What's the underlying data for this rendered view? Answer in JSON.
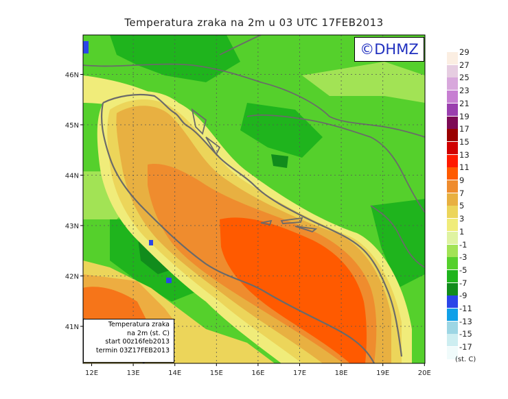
{
  "title": "Temperatura zraka na 2m u 03 UTC 17FEB2013",
  "logo": "©DHMZ",
  "info": {
    "line1": "Temperatura zraka",
    "line2": "na 2m (st. C)",
    "line3": "start 00z16feb2013",
    "line4": "termin 03Z17FEB2013"
  },
  "legend": {
    "unit": "(st. C)",
    "entries": [
      {
        "label": "29",
        "color": "#fbeee2"
      },
      {
        "label": "27",
        "color": "#e6cde1"
      },
      {
        "label": "25",
        "color": "#d8a8dc"
      },
      {
        "label": "23",
        "color": "#c77fd2"
      },
      {
        "label": "21",
        "color": "#9a3fae"
      },
      {
        "label": "19",
        "color": "#7d0a55"
      },
      {
        "label": "17",
        "color": "#9a0000"
      },
      {
        "label": "15",
        "color": "#d00000"
      },
      {
        "label": "13",
        "color": "#ff1a00"
      },
      {
        "label": "11",
        "color": "#ff5a00"
      },
      {
        "label": "9",
        "color": "#ef8c2e"
      },
      {
        "label": "7",
        "color": "#e8b041"
      },
      {
        "label": "5",
        "color": "#ecd55a"
      },
      {
        "label": "3",
        "color": "#f0ec7a"
      },
      {
        "label": "1",
        "color": "#dff3a1"
      },
      {
        "label": "-1",
        "color": "#a2e355"
      },
      {
        "label": "-3",
        "color": "#55d02c"
      },
      {
        "label": "-5",
        "color": "#1fb41d"
      },
      {
        "label": "-7",
        "color": "#118c1c"
      },
      {
        "label": "-9",
        "color": "#2a45e8"
      },
      {
        "label": "-11",
        "color": "#10a0e8"
      },
      {
        "label": "-13",
        "color": "#9dd6e4"
      },
      {
        "label": "-15",
        "color": "#cdeef1"
      },
      {
        "label": "-17",
        "color": "#f0fbfb"
      }
    ]
  },
  "axes": {
    "lon_labels": [
      "12E",
      "13E",
      "14E",
      "15E",
      "16E",
      "17E",
      "18E",
      "19E",
      "20E"
    ],
    "lat_labels": [
      "41N",
      "42N",
      "43N",
      "44N",
      "45N",
      "46N"
    ]
  }
}
